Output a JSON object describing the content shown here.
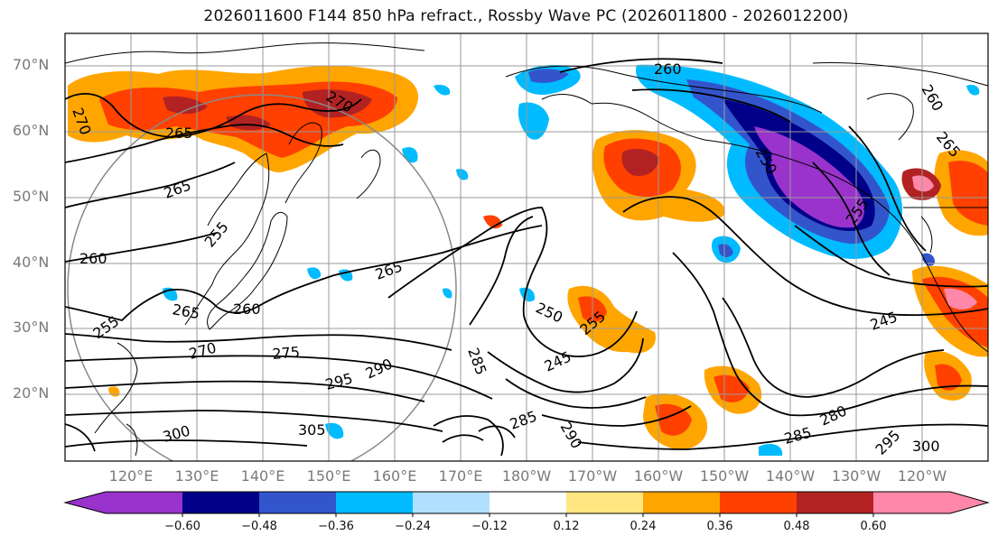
{
  "title": "2026011600 F144 850 hPa refract., Rossby Wave PC (2026011800 - 2026012200)",
  "map": {
    "lat_labels": [
      "70°N",
      "60°N",
      "50°N",
      "40°N",
      "30°N",
      "20°N"
    ],
    "lon_labels": [
      "120°E",
      "130°E",
      "140°E",
      "150°E",
      "160°E",
      "170°E",
      "180°W",
      "170°W",
      "160°W",
      "150°W",
      "140°W",
      "130°W",
      "120°W"
    ],
    "contour_labels": [
      "260",
      "270",
      "265",
      "270",
      "265",
      "255",
      "265",
      "260",
      "255",
      "260",
      "270",
      "275",
      "265",
      "290",
      "295",
      "300",
      "305",
      "250",
      "255",
      "245",
      "285",
      "285",
      "290",
      "280",
      "285",
      "295",
      "300",
      "245",
      "250",
      "255",
      "265",
      "260"
    ],
    "colors": {
      "land_outline": "#000000",
      "grid": "#9a9a9a",
      "contour": "#000000"
    }
  },
  "colorbar": {
    "tick_labels": [
      "−0.60",
      "−0.48",
      "−0.36",
      "−0.24",
      "−0.12",
      "0.12",
      "0.24",
      "0.36",
      "0.48",
      "0.60"
    ],
    "colors": [
      "#9933cc",
      "#000088",
      "#3355cc",
      "#00bbff",
      "#b0e0ff",
      "#ffffff",
      "#ffe680",
      "#ffa500",
      "#ff4000",
      "#b22222",
      "#ff88aa"
    ]
  }
}
